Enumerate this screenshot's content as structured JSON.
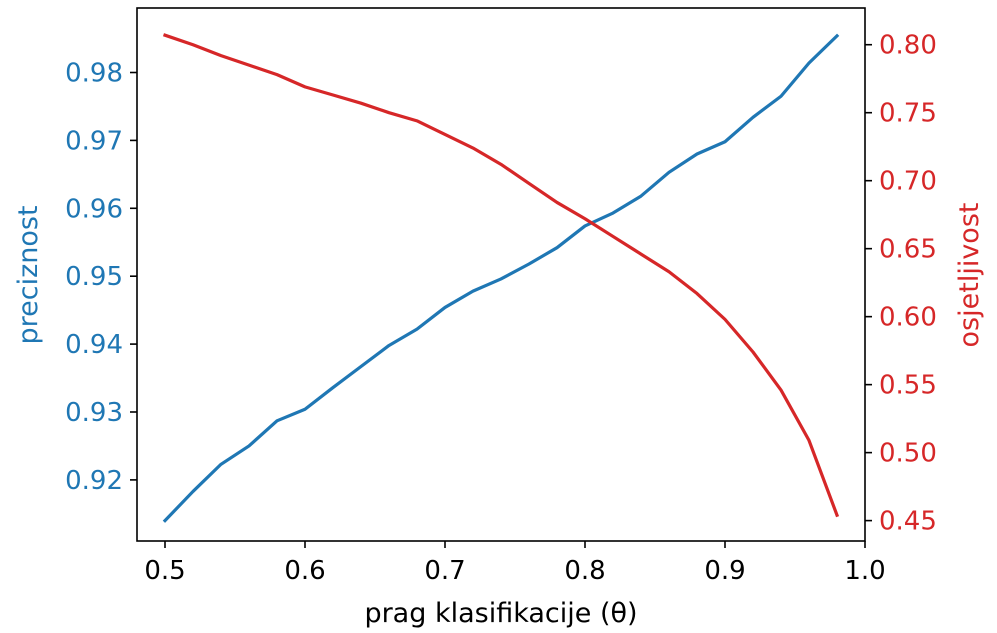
{
  "chart_data": {
    "type": "line",
    "xlabel": "prag klasifikacije (θ)",
    "ylabel_left": "preciznost",
    "ylabel_right": "osjetljivost",
    "xlim": [
      0.48,
      1.0
    ],
    "ylim_left": [
      0.911,
      0.9895
    ],
    "ylim_right": [
      0.435,
      0.827
    ],
    "x_ticks": [
      "0.5",
      "0.6",
      "0.7",
      "0.8",
      "0.9",
      "1.0"
    ],
    "y_left_ticks": [
      "0.92",
      "0.93",
      "0.94",
      "0.95",
      "0.96",
      "0.97",
      "0.98"
    ],
    "y_right_ticks": [
      "0.45",
      "0.50",
      "0.55",
      "0.60",
      "0.65",
      "0.70",
      "0.75",
      "0.80"
    ],
    "grid": false,
    "colors": {
      "left": "#1f77b4",
      "right": "#d62728",
      "axes": "#000000"
    },
    "x": [
      0.5,
      0.52,
      0.54,
      0.56,
      0.58,
      0.6,
      0.62,
      0.64,
      0.66,
      0.68,
      0.7,
      0.72,
      0.74,
      0.76,
      0.78,
      0.8,
      0.82,
      0.84,
      0.86,
      0.88,
      0.9,
      0.92,
      0.94,
      0.96,
      0.98
    ],
    "series": [
      {
        "axis": "left",
        "values": [
          0.914,
          0.9183,
          0.9223,
          0.925,
          0.9287,
          0.9304,
          0.9336,
          0.9367,
          0.9398,
          0.9422,
          0.9454,
          0.9478,
          0.9496,
          0.9518,
          0.9542,
          0.9574,
          0.9593,
          0.9618,
          0.9653,
          0.968,
          0.9698,
          0.9734,
          0.9765,
          0.9814,
          0.9854
        ]
      },
      {
        "axis": "right",
        "values": [
          0.807,
          0.8,
          0.792,
          0.785,
          0.778,
          0.769,
          0.763,
          0.757,
          0.75,
          0.744,
          0.734,
          0.724,
          0.712,
          0.698,
          0.684,
          0.672,
          0.659,
          0.646,
          0.633,
          0.617,
          0.598,
          0.574,
          0.546,
          0.509,
          0.454
        ]
      }
    ]
  }
}
